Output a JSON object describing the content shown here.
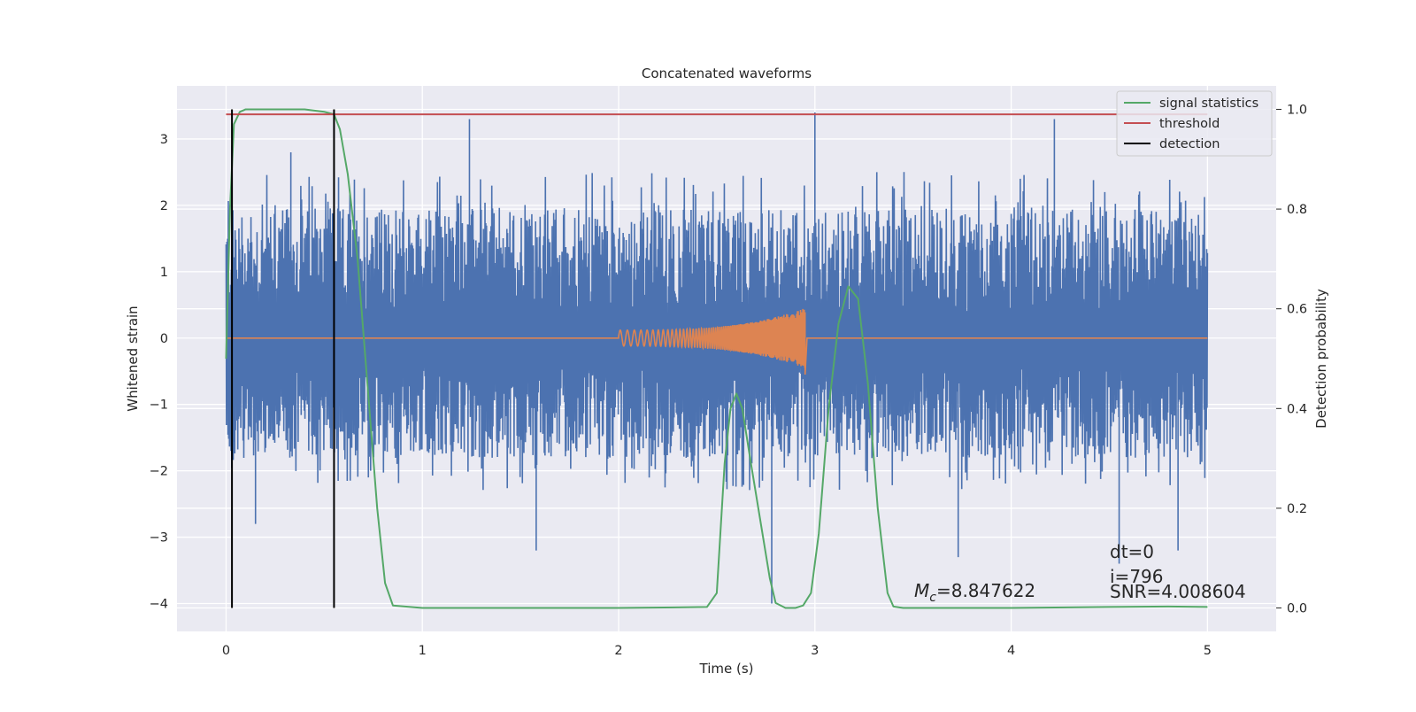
{
  "chart_data": {
    "type": "line",
    "title": "Concatenated waveforms",
    "xlabel": "Time (s)",
    "ylabel": "Whitened strain",
    "ylabel_right": "Detection probability",
    "xlim": [
      -0.25,
      5.35
    ],
    "ylim": [
      -4.42,
      3.8
    ],
    "ylim_right": [
      -0.047,
      1.047
    ],
    "xticks": [
      0,
      1,
      2,
      3,
      4,
      5
    ],
    "xtick_labels": [
      "0",
      "1",
      "2",
      "3",
      "4",
      "5"
    ],
    "yticks": [
      -4,
      -3,
      -2,
      -1,
      0,
      1,
      2,
      3
    ],
    "ytick_labels": [
      "−4",
      "−3",
      "−2",
      "−1",
      "0",
      "1",
      "2",
      "3"
    ],
    "yticks_right": [
      0,
      0.2,
      0.4,
      0.6,
      0.8,
      1.0
    ],
    "ytick_right_labels": [
      "0.0",
      "0.2",
      "0.4",
      "0.6",
      "0.8",
      "1.0"
    ],
    "grid": true,
    "legend_position": "top-right",
    "series": [
      {
        "name": "",
        "axis": "left",
        "kind": "noise",
        "color": "#4c72b0",
        "x_range": [
          0,
          5
        ],
        "typical_range": [
          -1.5,
          2.0
        ],
        "peaks": [
          [
            0.03,
            2.9
          ],
          [
            0.15,
            -2.8
          ],
          [
            0.33,
            2.8
          ],
          [
            0.55,
            3.2
          ],
          [
            1.24,
            3.3
          ],
          [
            1.58,
            -3.2
          ],
          [
            2.78,
            -4.0
          ],
          [
            3.0,
            3.4
          ],
          [
            3.73,
            -3.3
          ],
          [
            4.22,
            3.3
          ],
          [
            4.55,
            -3.4
          ],
          [
            4.85,
            -3.2
          ]
        ]
      },
      {
        "name": "",
        "axis": "left",
        "kind": "chirp",
        "color": "#dd8452",
        "x_range": [
          0,
          5
        ],
        "chirp_start": 2.0,
        "chirp_end": 2.95,
        "amplitude_start": 0.12,
        "amplitude_end": 0.45
      },
      {
        "name": "signal statistics",
        "axis": "right",
        "color": "#55a868",
        "x": [
          0,
          0.02,
          0.04,
          0.07,
          0.1,
          0.2,
          0.4,
          0.5,
          0.55,
          0.58,
          0.62,
          0.67,
          0.72,
          0.77,
          0.81,
          0.85,
          1.0,
          2.0,
          2.45,
          2.5,
          2.54,
          2.57,
          2.6,
          2.63,
          2.67,
          2.72,
          2.77,
          2.8,
          2.85,
          2.9,
          2.94,
          2.98,
          3.02,
          3.07,
          3.12,
          3.17,
          3.22,
          3.27,
          3.32,
          3.37,
          3.4,
          3.45,
          4.0,
          4.5,
          4.8,
          5.0
        ],
        "y": [
          0.5,
          0.8,
          0.97,
          0.995,
          1.0,
          1.0,
          1.0,
          0.995,
          0.99,
          0.96,
          0.87,
          0.7,
          0.45,
          0.2,
          0.05,
          0.005,
          0.0,
          0.0,
          0.002,
          0.03,
          0.29,
          0.4,
          0.43,
          0.4,
          0.3,
          0.18,
          0.06,
          0.01,
          0.0,
          0.0,
          0.005,
          0.03,
          0.15,
          0.4,
          0.57,
          0.645,
          0.62,
          0.45,
          0.2,
          0.03,
          0.003,
          0.0,
          0.0,
          0.002,
          0.003,
          0.002
        ]
      },
      {
        "name": "threshold",
        "axis": "right",
        "color": "#c44e52",
        "x": [
          0,
          5
        ],
        "y": [
          0.99,
          0.99
        ]
      },
      {
        "name": "detection",
        "axis": "right",
        "color": "#000000",
        "kind": "vlines",
        "x": [
          0.03,
          0.55
        ],
        "y_range": [
          0,
          1.0
        ]
      }
    ],
    "annotations": {
      "mc_label": "=8.847622",
      "dt": "dt=0",
      "i": "i=796",
      "snr": "SNR=4.008604"
    }
  }
}
